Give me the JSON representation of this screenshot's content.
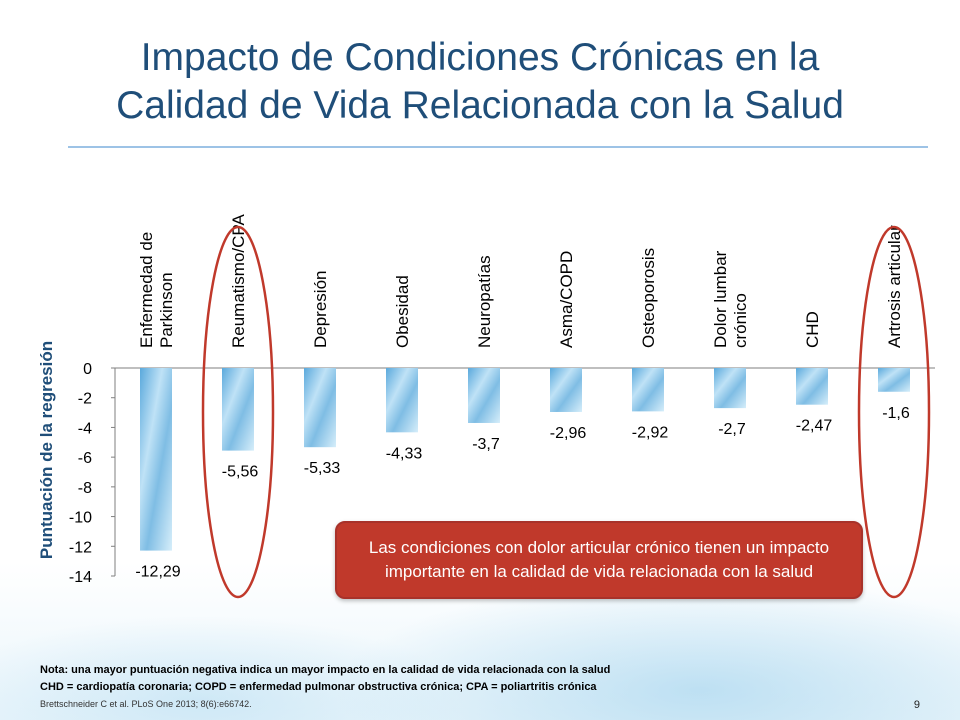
{
  "slide": {
    "title_line1": "Impacto de Condiciones Crónicas en la",
    "title_line2": "Calidad de Vida Relacionada con la Salud",
    "callout": "Las condiciones con dolor articular crónico tienen un impacto importante en la calidad de vida relacionada con la salud",
    "note_line1": "Nota: una mayor puntuación negativa indica un mayor impacto en la calidad de vida relacionada con la salud",
    "note_line2": "CHD = cardiopatía coronaria; COPD = enfermedad pulmonar obstructiva crónica; CPA = poliartritis crónica",
    "note_line3": "Brettschneider C et al. PLoS One 2013; 8(6):e66742.",
    "page_number": "9"
  },
  "colors": {
    "title": "#1f4e79",
    "bar": "#7fbde4",
    "highlight": "#c0392b",
    "callout_bg": "#c0392b",
    "rule": "#9dc3e6"
  },
  "chart_data": {
    "type": "bar",
    "title": "",
    "ylabel": "Puntuación de la regresión",
    "xlabel": "",
    "ylim": [
      -14,
      0
    ],
    "yticks": [
      "0",
      "-2",
      "-4",
      "-6",
      "-8",
      "-10",
      "-12",
      "-14"
    ],
    "categories": [
      [
        "Enfermedad de",
        "Parkinson"
      ],
      [
        "Reumatismo/CPA"
      ],
      [
        "Depresión"
      ],
      [
        "Obesidad"
      ],
      [
        "Neuropatías"
      ],
      [
        "Asma/COPD"
      ],
      [
        "Osteoporosis"
      ],
      [
        "Dolor lumbar",
        "crónico"
      ],
      [
        "CHD"
      ],
      [
        "Artrosis articular"
      ]
    ],
    "values": [
      -12.29,
      -5.56,
      -5.33,
      -4.33,
      -3.7,
      -2.96,
      -2.92,
      -2.7,
      -2.47,
      -1.6
    ],
    "value_labels": [
      "-12,29",
      "-5,56",
      "-5,33",
      "-4,33",
      "-3,7",
      "-2,96",
      "-2,92",
      "-2,7",
      "-2,47",
      "-1,6"
    ],
    "highlighted": [
      "Reumatismo/CPA",
      "Artrosis articular"
    ]
  }
}
